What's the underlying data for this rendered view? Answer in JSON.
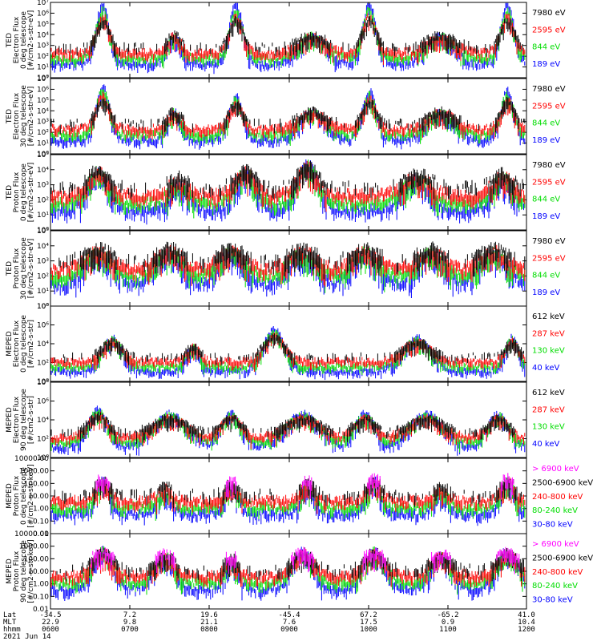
{
  "colors": {
    "black": "#000000",
    "red": "#ff0000",
    "green": "#00dd00",
    "blue": "#0000ff",
    "magenta": "#ff00ff"
  },
  "date_label": "2021 Jun 14",
  "footer": {
    "row_labels": [
      "Lat",
      "MLT",
      "hhmm"
    ],
    "columns": [
      {
        "lat": "-34.5",
        "mlt": "22.9",
        "hhmm": "0600"
      },
      {
        "lat": "7.2",
        "mlt": "9.8",
        "hhmm": "0700"
      },
      {
        "lat": "19.6",
        "mlt": "21.1",
        "hhmm": "0800"
      },
      {
        "lat": "-45.4",
        "mlt": "7.6",
        "hhmm": "0900"
      },
      {
        "lat": "67.2",
        "mlt": "17.5",
        "hhmm": "1000"
      },
      {
        "lat": "-65.2",
        "mlt": "0.9",
        "hhmm": "1100"
      },
      {
        "lat": "41.0",
        "mlt": "10.4",
        "hhmm": "1200"
      }
    ]
  },
  "chart_data": [
    {
      "type": "line",
      "ylabel": [
        "TED",
        "Electron Flux",
        "0 deg telescope",
        "[#/cm2-s-str-eV]"
      ],
      "ylim": [
        1,
        10000000
      ],
      "log": true,
      "yticks": [
        "10⁰",
        "10¹",
        "10²",
        "10³",
        "10⁴",
        "10⁵",
        "10⁶",
        "10⁷"
      ],
      "x_range": [
        "0600",
        "1200"
      ],
      "series": [
        {
          "name": "7980 eV",
          "color": "#000000"
        },
        {
          "name": "2595 eV",
          "color": "#ff0000"
        },
        {
          "name": "844 eV",
          "color": "#00dd00"
        },
        {
          "name": "189 eV",
          "color": "#0000ff"
        }
      ]
    },
    {
      "type": "line",
      "ylabel": [
        "TED",
        "Electron Flux",
        "30 deg telescope",
        "[#/cm2-s-str-eV]"
      ],
      "ylim": [
        1,
        10000000
      ],
      "log": true,
      "yticks": [
        "10⁰",
        "10¹",
        "10²",
        "10³",
        "10⁴",
        "10⁵",
        "10⁶",
        "10⁷"
      ],
      "x_range": [
        "0600",
        "1200"
      ],
      "series": [
        {
          "name": "7980 eV",
          "color": "#000000"
        },
        {
          "name": "2595 eV",
          "color": "#ff0000"
        },
        {
          "name": "844 eV",
          "color": "#00dd00"
        },
        {
          "name": "189 eV",
          "color": "#0000ff"
        }
      ]
    },
    {
      "type": "line",
      "ylabel": [
        "TED",
        "Proton Flux",
        "0 deg telescope",
        "[#/cm2-s-str-eV]"
      ],
      "ylim": [
        1,
        100000
      ],
      "log": true,
      "yticks": [
        "10⁰",
        "10¹",
        "10²",
        "10³",
        "10⁴",
        "10⁵"
      ],
      "x_range": [
        "0600",
        "1200"
      ],
      "series": [
        {
          "name": "7980 eV",
          "color": "#000000"
        },
        {
          "name": "2595 eV",
          "color": "#ff0000"
        },
        {
          "name": "844 eV",
          "color": "#00dd00"
        },
        {
          "name": "189 eV",
          "color": "#0000ff"
        }
      ]
    },
    {
      "type": "line",
      "ylabel": [
        "TED",
        "Proton Flux",
        "30 deg telescope",
        "[#/cm2-s-str-eV]"
      ],
      "ylim": [
        1,
        100000
      ],
      "log": true,
      "yticks": [
        "10⁰",
        "10¹",
        "10²",
        "10³",
        "10⁴",
        "10⁵"
      ],
      "x_range": [
        "0600",
        "1200"
      ],
      "series": [
        {
          "name": "7980 eV",
          "color": "#000000"
        },
        {
          "name": "2595 eV",
          "color": "#ff0000"
        },
        {
          "name": "844 eV",
          "color": "#00dd00"
        },
        {
          "name": "189 eV",
          "color": "#0000ff"
        }
      ]
    },
    {
      "type": "line",
      "ylabel": [
        "MEPED",
        "Electron Flux",
        "0 deg telescope",
        "[#/cm2-s-str]"
      ],
      "ylim": [
        1,
        100000000
      ],
      "log": true,
      "yticks": [
        "10⁰",
        "10²",
        "10⁴",
        "10⁶",
        "10⁸"
      ],
      "x_range": [
        "0600",
        "1200"
      ],
      "series": [
        {
          "name": "612 keV",
          "color": "#000000"
        },
        {
          "name": "287 keV",
          "color": "#ff0000"
        },
        {
          "name": "130 keV",
          "color": "#00dd00"
        },
        {
          "name": "40 keV",
          "color": "#0000ff"
        }
      ]
    },
    {
      "type": "line",
      "ylabel": [
        "MEPED",
        "Electron Flux",
        "90 deg telescope",
        "[#/cm2-s-str]"
      ],
      "ylim": [
        1,
        100000000
      ],
      "log": true,
      "yticks": [
        "10⁰",
        "10²",
        "10⁴",
        "10⁶",
        "10⁸"
      ],
      "x_range": [
        "0600",
        "1200"
      ],
      "series": [
        {
          "name": "612 keV",
          "color": "#000000"
        },
        {
          "name": "287 keV",
          "color": "#ff0000"
        },
        {
          "name": "130 keV",
          "color": "#00dd00"
        },
        {
          "name": "40 keV",
          "color": "#0000ff"
        }
      ]
    },
    {
      "type": "line",
      "ylabel": [
        "MEPED",
        "Proton Flux",
        "0 deg telescope",
        "[#/cm2-s-str-keV]"
      ],
      "ylim": [
        0.01,
        10000
      ],
      "log": true,
      "yticks": [
        "0.01",
        "0.10",
        "1.00",
        "10.00",
        "100.00",
        "1000.00",
        "10000.00"
      ],
      "x_range": [
        "0600",
        "1200"
      ],
      "series": [
        {
          "name": "> 6900 keV",
          "color": "#ff00ff"
        },
        {
          "name": "2500-6900 keV",
          "color": "#000000"
        },
        {
          "name": "240-800 keV",
          "color": "#ff0000"
        },
        {
          "name": "80-240 keV",
          "color": "#00dd00"
        },
        {
          "name": "30-80 keV",
          "color": "#0000ff"
        }
      ]
    },
    {
      "type": "line",
      "ylabel": [
        "MEPED",
        "Proton Flux",
        "90 deg telescope",
        "[#/cm2-s-str-keV]"
      ],
      "ylim": [
        0.01,
        10000
      ],
      "log": true,
      "yticks": [
        "0.01",
        "0.10",
        "1.00",
        "10.00",
        "100.00",
        "1000.00",
        "10000.00"
      ],
      "x_range": [
        "0600",
        "1200"
      ],
      "series": [
        {
          "name": "> 6900 keV",
          "color": "#ff00ff"
        },
        {
          "name": "2500-6900 keV",
          "color": "#000000"
        },
        {
          "name": "240-800 keV",
          "color": "#ff0000"
        },
        {
          "name": "80-240 keV",
          "color": "#00dd00"
        },
        {
          "name": "30-80 keV",
          "color": "#0000ff"
        }
      ]
    }
  ]
}
